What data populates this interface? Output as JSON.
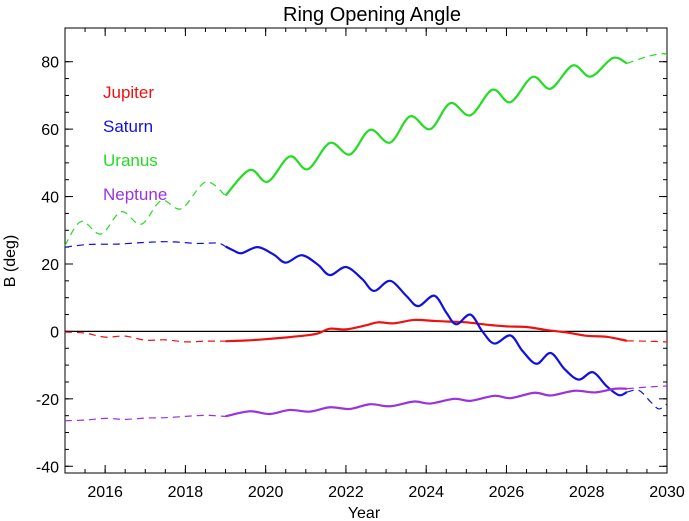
{
  "chart_data": {
    "type": "line",
    "title": "Ring Opening Angle",
    "xlabel": "Year",
    "ylabel": "B (deg)",
    "xlim": [
      2015,
      2030
    ],
    "ylim": [
      -42,
      90
    ],
    "xticks": [
      2016,
      2018,
      2020,
      2022,
      2024,
      2026,
      2028,
      2030
    ],
    "yticks": [
      -40,
      -20,
      0,
      20,
      40,
      60,
      80
    ],
    "zero_line": 0,
    "legend": "upper-left",
    "grid": false,
    "series": [
      {
        "name": "Jupiter",
        "color": "#ee1111",
        "solid_range": [
          2019.0,
          2029.0
        ],
        "points": [
          [
            2015.0,
            -0.2
          ],
          [
            2015.5,
            -0.5
          ],
          [
            2016.0,
            -1.7
          ],
          [
            2016.5,
            -1.4
          ],
          [
            2017.0,
            -2.6
          ],
          [
            2017.5,
            -2.5
          ],
          [
            2018.0,
            -3.1
          ],
          [
            2018.5,
            -2.9
          ],
          [
            2019.0,
            -2.9
          ],
          [
            2019.5,
            -2.7
          ],
          [
            2020.0,
            -2.3
          ],
          [
            2020.5,
            -1.8
          ],
          [
            2021.0,
            -1.2
          ],
          [
            2021.3,
            -0.6
          ],
          [
            2021.6,
            0.8
          ],
          [
            2022.0,
            0.6
          ],
          [
            2022.5,
            1.8
          ],
          [
            2022.8,
            2.7
          ],
          [
            2023.2,
            2.4
          ],
          [
            2023.7,
            3.4
          ],
          [
            2024.2,
            3.1
          ],
          [
            2024.6,
            2.9
          ],
          [
            2025.0,
            2.7
          ],
          [
            2025.5,
            2.0
          ],
          [
            2026.0,
            1.5
          ],
          [
            2026.5,
            1.3
          ],
          [
            2027.0,
            0.4
          ],
          [
            2027.5,
            -0.3
          ],
          [
            2028.0,
            -1.3
          ],
          [
            2028.5,
            -1.6
          ],
          [
            2029.0,
            -2.8
          ],
          [
            2029.5,
            -2.9
          ],
          [
            2030.0,
            -3.1
          ]
        ]
      },
      {
        "name": "Saturn",
        "color": "#1111dd",
        "solid_range": [
          2019.0,
          2029.0
        ],
        "points": [
          [
            2015.0,
            25.0
          ],
          [
            2015.6,
            25.8
          ],
          [
            2016.3,
            25.9
          ],
          [
            2017.0,
            26.4
          ],
          [
            2017.6,
            26.6
          ],
          [
            2018.3,
            26.1
          ],
          [
            2018.8,
            26.2
          ],
          [
            2019.0,
            25.2
          ],
          [
            2019.2,
            24.0
          ],
          [
            2019.4,
            23.2
          ],
          [
            2019.8,
            25.0
          ],
          [
            2020.2,
            22.8
          ],
          [
            2020.5,
            20.4
          ],
          [
            2020.9,
            22.6
          ],
          [
            2021.3,
            19.8
          ],
          [
            2021.6,
            16.7
          ],
          [
            2022.0,
            19.1
          ],
          [
            2022.4,
            15.6
          ],
          [
            2022.7,
            12.0
          ],
          [
            2023.1,
            15.0
          ],
          [
            2023.5,
            10.6
          ],
          [
            2023.8,
            7.5
          ],
          [
            2024.2,
            10.6
          ],
          [
            2024.5,
            5.6
          ],
          [
            2024.75,
            2.1
          ],
          [
            2025.1,
            5.0
          ],
          [
            2025.4,
            0.0
          ],
          [
            2025.7,
            -3.6
          ],
          [
            2026.1,
            -1.2
          ],
          [
            2026.4,
            -5.8
          ],
          [
            2026.75,
            -9.6
          ],
          [
            2027.1,
            -6.4
          ],
          [
            2027.45,
            -11.2
          ],
          [
            2027.8,
            -14.3
          ],
          [
            2028.15,
            -12.1
          ],
          [
            2028.5,
            -16.3
          ],
          [
            2028.8,
            -18.9
          ],
          [
            2029.0,
            -18.0
          ],
          [
            2029.3,
            -17.5
          ],
          [
            2029.6,
            -21.0
          ],
          [
            2029.8,
            -23.0
          ],
          [
            2030.0,
            -21.5
          ]
        ]
      },
      {
        "name": "Uranus",
        "color": "#22dd22",
        "solid_range": [
          2019.0,
          2029.0
        ],
        "points": [
          [
            2015.0,
            25.5
          ],
          [
            2015.4,
            32.6
          ],
          [
            2015.9,
            28.9
          ],
          [
            2016.4,
            35.5
          ],
          [
            2016.9,
            31.8
          ],
          [
            2017.4,
            38.8
          ],
          [
            2017.9,
            36.4
          ],
          [
            2018.5,
            44.3
          ],
          [
            2019.0,
            40.3
          ],
          [
            2019.6,
            47.9
          ],
          [
            2020.05,
            44.4
          ],
          [
            2020.6,
            51.9
          ],
          [
            2021.05,
            48.1
          ],
          [
            2021.6,
            55.9
          ],
          [
            2022.1,
            52.5
          ],
          [
            2022.6,
            59.8
          ],
          [
            2023.1,
            56.0
          ],
          [
            2023.6,
            63.8
          ],
          [
            2024.1,
            60.0
          ],
          [
            2024.6,
            67.7
          ],
          [
            2025.1,
            64.1
          ],
          [
            2025.65,
            71.7
          ],
          [
            2026.1,
            68.0
          ],
          [
            2026.65,
            75.5
          ],
          [
            2027.1,
            72.0
          ],
          [
            2027.65,
            78.9
          ],
          [
            2028.1,
            75.6
          ],
          [
            2028.65,
            81.1
          ],
          [
            2029.0,
            79.5
          ],
          [
            2029.5,
            81.5
          ],
          [
            2029.9,
            82.4
          ],
          [
            2030.0,
            82.0
          ]
        ]
      },
      {
        "name": "Neptune",
        "color": "#9933dd",
        "solid_range": [
          2019.0,
          2029.0
        ],
        "points": [
          [
            2015.0,
            -26.5
          ],
          [
            2015.5,
            -26.3
          ],
          [
            2016.0,
            -25.8
          ],
          [
            2016.5,
            -26.1
          ],
          [
            2017.0,
            -25.7
          ],
          [
            2017.5,
            -25.6
          ],
          [
            2018.0,
            -25.2
          ],
          [
            2018.5,
            -24.9
          ],
          [
            2019.0,
            -25.2
          ],
          [
            2019.6,
            -23.7
          ],
          [
            2020.1,
            -24.5
          ],
          [
            2020.6,
            -23.3
          ],
          [
            2021.1,
            -23.8
          ],
          [
            2021.6,
            -22.5
          ],
          [
            2022.1,
            -23.0
          ],
          [
            2022.6,
            -21.6
          ],
          [
            2023.1,
            -22.2
          ],
          [
            2023.7,
            -20.8
          ],
          [
            2024.1,
            -21.4
          ],
          [
            2024.7,
            -20.0
          ],
          [
            2025.1,
            -20.6
          ],
          [
            2025.7,
            -19.1
          ],
          [
            2026.1,
            -19.8
          ],
          [
            2026.7,
            -18.2
          ],
          [
            2027.1,
            -19.0
          ],
          [
            2027.7,
            -17.6
          ],
          [
            2028.2,
            -18.1
          ],
          [
            2028.7,
            -17.0
          ],
          [
            2029.0,
            -17.0
          ],
          [
            2029.5,
            -16.5
          ],
          [
            2030.0,
            -16.2
          ]
        ]
      }
    ]
  }
}
